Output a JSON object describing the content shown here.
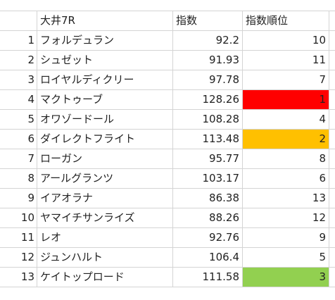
{
  "header": {
    "race": "大井7R",
    "index": "指数",
    "rank": "指数順位"
  },
  "rows": [
    {
      "no": "1",
      "name": "フォルデュラン",
      "index": "92.2",
      "rank": "10",
      "highlight": ""
    },
    {
      "no": "2",
      "name": "シュゼット",
      "index": "91.93",
      "rank": "11",
      "highlight": ""
    },
    {
      "no": "3",
      "name": "ロイヤルディクリー",
      "index": "97.78",
      "rank": "7",
      "highlight": ""
    },
    {
      "no": "4",
      "name": "マクトゥーブ",
      "index": "128.26",
      "rank": "1",
      "highlight": "#ff0000"
    },
    {
      "no": "5",
      "name": "オワゾードール",
      "index": "108.28",
      "rank": "4",
      "highlight": ""
    },
    {
      "no": "6",
      "name": "ダイレクトフライト",
      "index": "113.48",
      "rank": "2",
      "highlight": "#ffc000"
    },
    {
      "no": "7",
      "name": "ローガン",
      "index": "95.77",
      "rank": "8",
      "highlight": ""
    },
    {
      "no": "8",
      "name": "アールグランツ",
      "index": "103.17",
      "rank": "6",
      "highlight": ""
    },
    {
      "no": "9",
      "name": "イアオラナ",
      "index": "86.38",
      "rank": "13",
      "highlight": ""
    },
    {
      "no": "10",
      "name": "ヤマイチサンライズ",
      "index": "88.26",
      "rank": "12",
      "highlight": ""
    },
    {
      "no": "11",
      "name": "レオ",
      "index": "92.76",
      "rank": "9",
      "highlight": ""
    },
    {
      "no": "12",
      "name": "ジュンハルト",
      "index": "106.4",
      "rank": "5",
      "highlight": ""
    },
    {
      "no": "13",
      "name": "ケイトップロード",
      "index": "111.58",
      "rank": "3",
      "highlight": "#92d050"
    }
  ]
}
